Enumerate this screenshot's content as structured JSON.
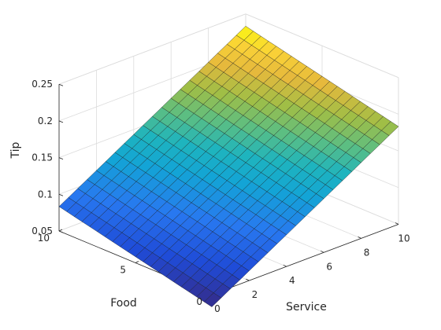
{
  "chart_data": {
    "type": "surface",
    "title": "",
    "xlabel": "Service",
    "ylabel": "Food",
    "zlabel": "Tip",
    "xlim": [
      0,
      10
    ],
    "ylim": [
      0,
      10
    ],
    "zlim": [
      0.05,
      0.25
    ],
    "xticks": [
      0,
      2,
      4,
      6,
      8,
      10
    ],
    "yticks": [
      0,
      5,
      10
    ],
    "zticks": [
      0.05,
      0.1,
      0.15,
      0.2,
      0.25
    ],
    "xtick_labels": [
      "0",
      "2",
      "4",
      "6",
      "8",
      "10"
    ],
    "ytick_labels": [
      "0",
      "5",
      "10"
    ],
    "ztick_labels": [
      "0.05",
      "0.1",
      "0.15",
      "0.2",
      "0.25"
    ],
    "grid": true,
    "colormap": "parula",
    "surface": {
      "grid_steps": 20,
      "corners": {
        "service_0_food_0": 0.0333,
        "service_10_food_0": 0.1833,
        "service_0_food_10": 0.0833,
        "service_10_food_10": 0.2333
      }
    }
  }
}
